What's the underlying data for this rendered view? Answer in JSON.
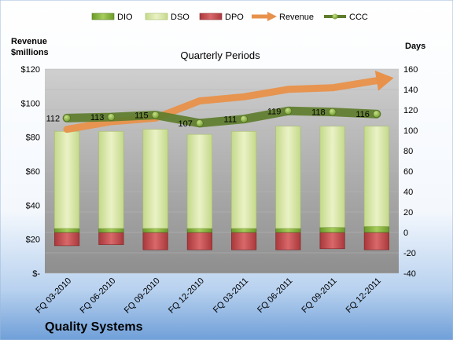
{
  "chart_data": {
    "type": "bar",
    "title": "Quarterly Periods",
    "company": "Quality Systems",
    "left_axis_label_line1": "Revenue",
    "left_axis_label_line2": "$millions",
    "right_axis_label": "Days",
    "categories": [
      "FQ 03-2010",
      "FQ 06-2010",
      "FQ 09-2010",
      "FQ 12-2010",
      "FQ 03-2011",
      "FQ 06-2011",
      "FQ 09-2011",
      "FQ 12-2011"
    ],
    "left_ticks": [
      "$-",
      "$20",
      "$40",
      "$60",
      "$80",
      "$100",
      "$120"
    ],
    "right_ticks": [
      "-40",
      "-20",
      "0",
      "20",
      "40",
      "60",
      "80",
      "100",
      "120",
      "140",
      "160"
    ],
    "left_ylim": [
      0,
      120
    ],
    "right_ylim": [
      -40,
      160
    ],
    "legend_placement": "top",
    "series": [
      {
        "name": "DIO",
        "axis": "right",
        "color": "#7fae3a",
        "values": [
          4,
          4,
          4,
          4,
          4,
          4,
          5,
          6
        ]
      },
      {
        "name": "DSO",
        "axis": "right",
        "color": "#dfeab0",
        "values": [
          95,
          95,
          97,
          92,
          95,
          100,
          99,
          98
        ]
      },
      {
        "name": "DPO",
        "axis": "right",
        "color": "#c0474a",
        "values": [
          -13,
          -12,
          -17,
          -17,
          -17,
          -17,
          -16,
          -17
        ]
      },
      {
        "name": "Revenue",
        "axis": "left",
        "color": "#e8914a",
        "values": [
          84.6,
          89.1,
          91.2,
          101.3,
          103.7,
          108.1,
          109.0,
          113.2
        ]
      },
      {
        "name": "CCC",
        "axis": "right",
        "color": "#5e7d2c",
        "values": [
          112,
          113,
          115,
          107,
          111,
          119,
          118,
          116
        ]
      }
    ],
    "ccc_labels": [
      "112",
      "113",
      "115",
      "107",
      "111",
      "119",
      "118",
      "116"
    ],
    "gridlines": true
  }
}
